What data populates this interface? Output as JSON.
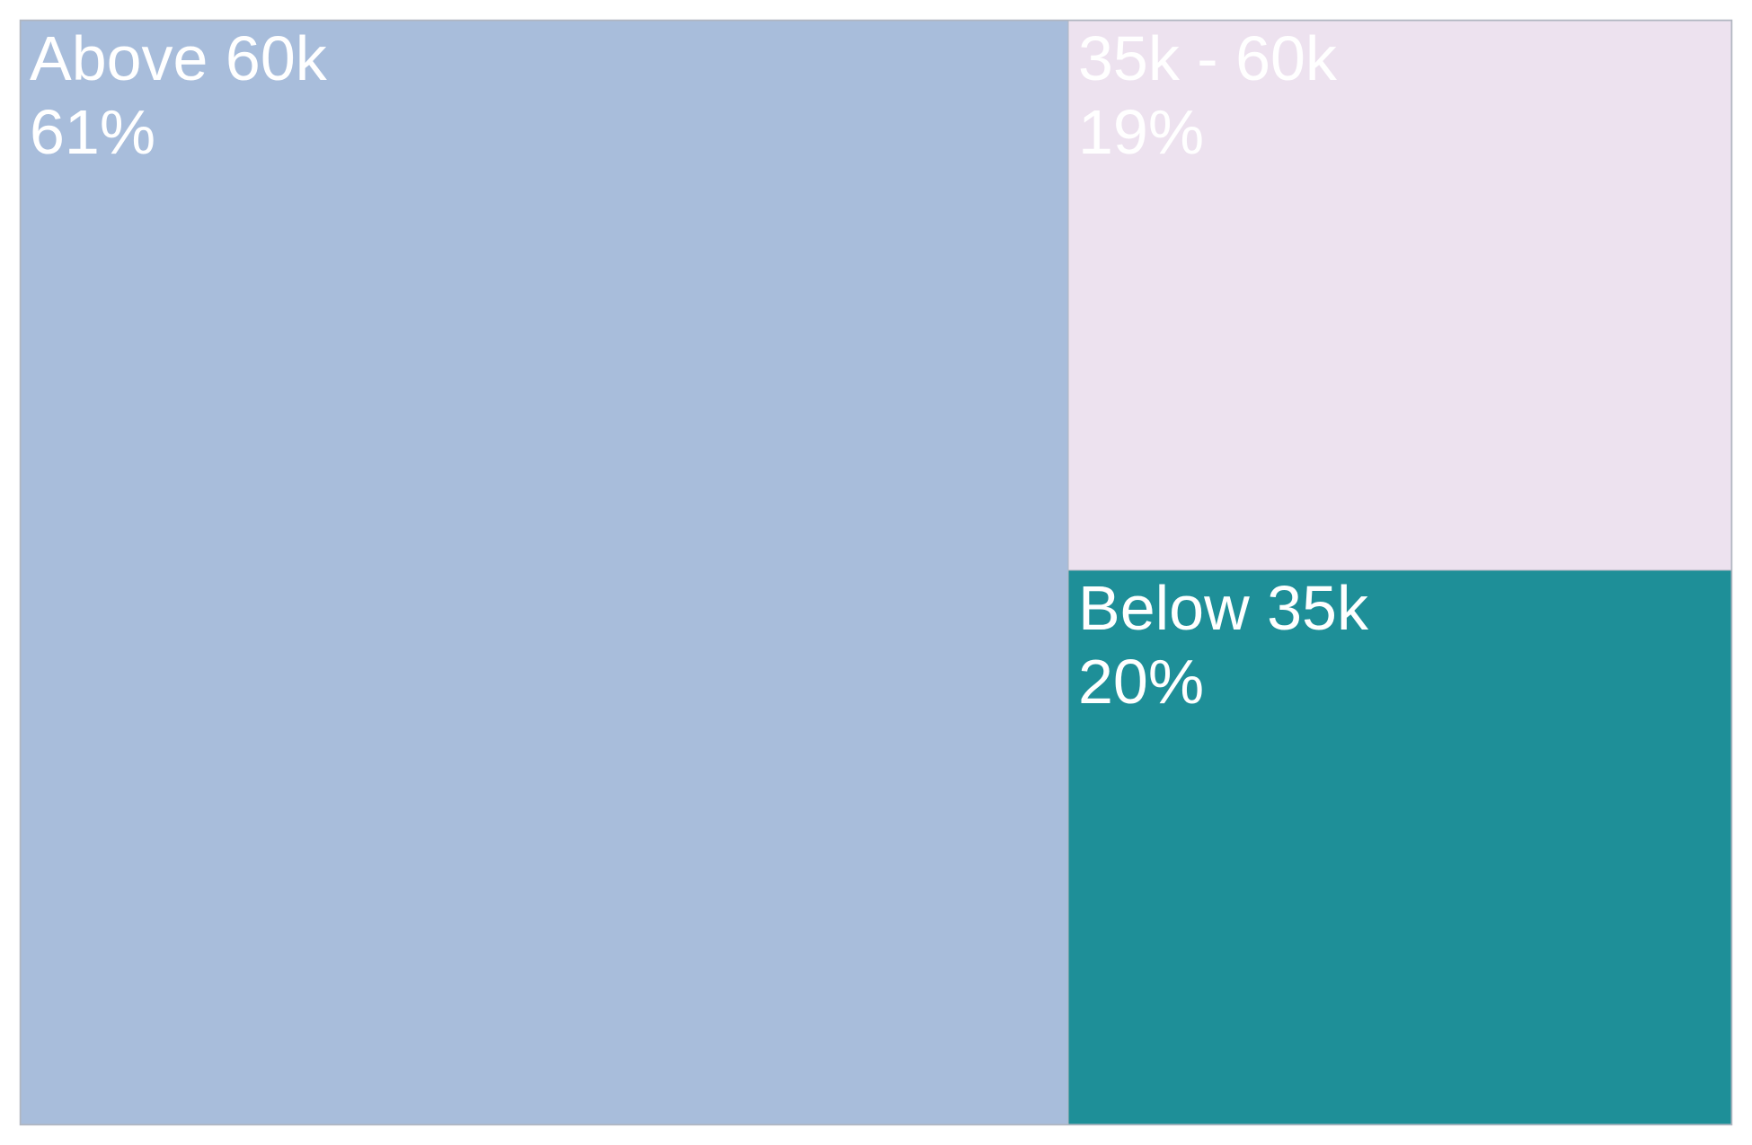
{
  "chart_data": {
    "type": "treemap",
    "title": "",
    "items": [
      {
        "label": "Above 60k",
        "value_label": "61%",
        "value": 61,
        "color": "#a8bddb",
        "text_color": "#ffffff"
      },
      {
        "label": "35k - 60k",
        "value_label": "19%",
        "value": 19,
        "color": "#ede2ef",
        "text_color": "#ffffff"
      },
      {
        "label": "Below 35k",
        "value_label": "20%",
        "value": 20,
        "color": "#1e8f98",
        "text_color": "#ffffff"
      }
    ],
    "border_color": "#b0b6c0"
  }
}
